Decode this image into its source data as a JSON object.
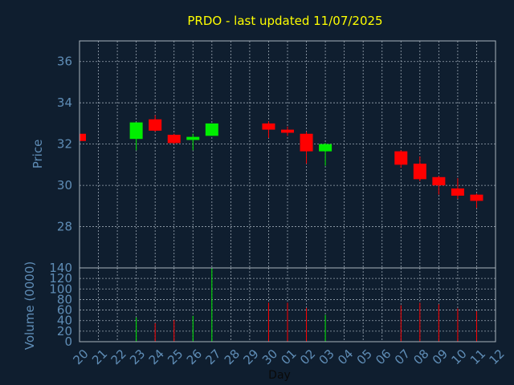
{
  "chart_data": {
    "title": "PRDO - last updated 11/07/2025",
    "type": "candlestick",
    "xlabel": "Day",
    "colors": {
      "up": "#00ee00",
      "down": "#ff0000",
      "title": "#ffff00",
      "axis_text": "#5f8db6",
      "background": "#0f1e2f"
    },
    "x_tick_labels": [
      "20",
      "21",
      "22",
      "23",
      "24",
      "25",
      "26",
      "27",
      "28",
      "29",
      "30",
      "01",
      "02",
      "03",
      "04",
      "05",
      "06",
      "07",
      "08",
      "09",
      "10",
      "11",
      "12"
    ],
    "price_panel": {
      "ylabel": "Price",
      "ylim": [
        26,
        37
      ],
      "yticks": [
        28,
        30,
        32,
        34,
        36
      ],
      "candles": [
        {
          "x": "20",
          "open": 32.5,
          "high": 32.5,
          "low": 32.15,
          "close": 32.15
        },
        {
          "x": "23",
          "open": 32.25,
          "high": 33.05,
          "low": 31.7,
          "close": 33.05
        },
        {
          "x": "24",
          "open": 33.2,
          "high": 33.4,
          "low": 32.6,
          "close": 32.65
        },
        {
          "x": "25",
          "open": 32.45,
          "high": 32.5,
          "low": 32.0,
          "close": 32.05
        },
        {
          "x": "26",
          "open": 32.2,
          "high": 32.5,
          "low": 31.7,
          "close": 32.35
        },
        {
          "x": "27",
          "open": 32.4,
          "high": 33.0,
          "low": 32.4,
          "close": 33.0
        },
        {
          "x": "30",
          "open": 33.0,
          "high": 33.1,
          "low": 32.3,
          "close": 32.7
        },
        {
          "x": "01",
          "open": 32.7,
          "high": 32.85,
          "low": 32.4,
          "close": 32.55
        },
        {
          "x": "02",
          "open": 32.5,
          "high": 32.6,
          "low": 31.05,
          "close": 31.65
        },
        {
          "x": "03",
          "open": 31.65,
          "high": 32.05,
          "low": 30.95,
          "close": 32.0
        },
        {
          "x": "07",
          "open": 31.65,
          "high": 31.7,
          "low": 30.85,
          "close": 31.0
        },
        {
          "x": "08",
          "open": 31.05,
          "high": 31.4,
          "low": 30.2,
          "close": 30.3
        },
        {
          "x": "09",
          "open": 30.4,
          "high": 30.45,
          "low": 29.55,
          "close": 30.0
        },
        {
          "x": "10",
          "open": 29.85,
          "high": 30.35,
          "low": 29.35,
          "close": 29.5
        },
        {
          "x": "11",
          "open": 29.55,
          "high": 29.6,
          "low": 28.9,
          "close": 29.25
        }
      ]
    },
    "volume_panel": {
      "ylabel": "Volume (0000)",
      "ylim": [
        0,
        140
      ],
      "yticks": [
        0,
        20,
        40,
        60,
        80,
        100,
        120,
        140
      ],
      "bars": [
        {
          "x": "23",
          "value": 46,
          "direction": "up"
        },
        {
          "x": "24",
          "value": 35,
          "direction": "down"
        },
        {
          "x": "25",
          "value": 41,
          "direction": "down"
        },
        {
          "x": "26",
          "value": 49,
          "direction": "up"
        },
        {
          "x": "27",
          "value": 140,
          "direction": "up"
        },
        {
          "x": "30",
          "value": 74,
          "direction": "down"
        },
        {
          "x": "01",
          "value": 74,
          "direction": "down"
        },
        {
          "x": "02",
          "value": 64,
          "direction": "down"
        },
        {
          "x": "03",
          "value": 51,
          "direction": "up"
        },
        {
          "x": "07",
          "value": 69,
          "direction": "down"
        },
        {
          "x": "08",
          "value": 74,
          "direction": "down"
        },
        {
          "x": "09",
          "value": 71,
          "direction": "down"
        },
        {
          "x": "10",
          "value": 63,
          "direction": "down"
        },
        {
          "x": "11",
          "value": 58,
          "direction": "down"
        }
      ]
    },
    "grid": true
  }
}
